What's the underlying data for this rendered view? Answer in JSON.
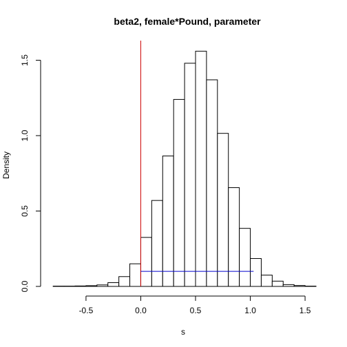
{
  "chart_data": {
    "type": "bar",
    "title": "beta2, female*Pound, parameter",
    "xlabel": "s",
    "ylabel": "Density",
    "xlim": [
      -0.82,
      1.6
    ],
    "ylim": [
      0,
      1.63
    ],
    "bin_width": 0.1,
    "bins": [
      {
        "start": -0.8,
        "end": -0.7,
        "density": 0.002
      },
      {
        "start": -0.7,
        "end": -0.6,
        "density": 0.002
      },
      {
        "start": -0.6,
        "end": -0.5,
        "density": 0.003
      },
      {
        "start": -0.5,
        "end": -0.4,
        "density": 0.005
      },
      {
        "start": -0.4,
        "end": -0.3,
        "density": 0.01
      },
      {
        "start": -0.3,
        "end": -0.2,
        "density": 0.025
      },
      {
        "start": -0.2,
        "end": -0.1,
        "density": 0.065
      },
      {
        "start": -0.1,
        "end": 0.0,
        "density": 0.15
      },
      {
        "start": 0.0,
        "end": 0.1,
        "density": 0.325
      },
      {
        "start": 0.1,
        "end": 0.2,
        "density": 0.57
      },
      {
        "start": 0.2,
        "end": 0.3,
        "density": 0.865
      },
      {
        "start": 0.3,
        "end": 0.4,
        "density": 1.24
      },
      {
        "start": 0.4,
        "end": 0.5,
        "density": 1.48
      },
      {
        "start": 0.5,
        "end": 0.6,
        "density": 1.56
      },
      {
        "start": 0.6,
        "end": 0.7,
        "density": 1.37
      },
      {
        "start": 0.7,
        "end": 0.8,
        "density": 1.015
      },
      {
        "start": 0.8,
        "end": 0.9,
        "density": 0.655
      },
      {
        "start": 0.9,
        "end": 1.0,
        "density": 0.385
      },
      {
        "start": 1.0,
        "end": 1.1,
        "density": 0.185
      },
      {
        "start": 1.1,
        "end": 1.2,
        "density": 0.075
      },
      {
        "start": 1.2,
        "end": 1.3,
        "density": 0.035
      },
      {
        "start": 1.3,
        "end": 1.4,
        "density": 0.012
      },
      {
        "start": 1.4,
        "end": 1.5,
        "density": 0.006
      },
      {
        "start": 1.5,
        "end": 1.6,
        "density": 0.002
      }
    ],
    "x_ticks": [
      -0.5,
      0.0,
      0.5,
      1.0,
      1.5
    ],
    "x_tick_labels": [
      "-0.5",
      "0.0",
      "0.5",
      "1.0",
      "1.5"
    ],
    "y_ticks": [
      0.0,
      0.5,
      1.0,
      1.5
    ],
    "y_tick_labels": [
      "0.0",
      "0.5",
      "1.0",
      "1.5"
    ],
    "reference_line": {
      "orientation": "vertical",
      "x": 0.0,
      "color": "#cc0000"
    },
    "interval_segment": {
      "x_start": 0.0,
      "x_end": 1.03,
      "y": 0.1,
      "color": "#0000cc"
    },
    "grid": false,
    "legend": false
  }
}
